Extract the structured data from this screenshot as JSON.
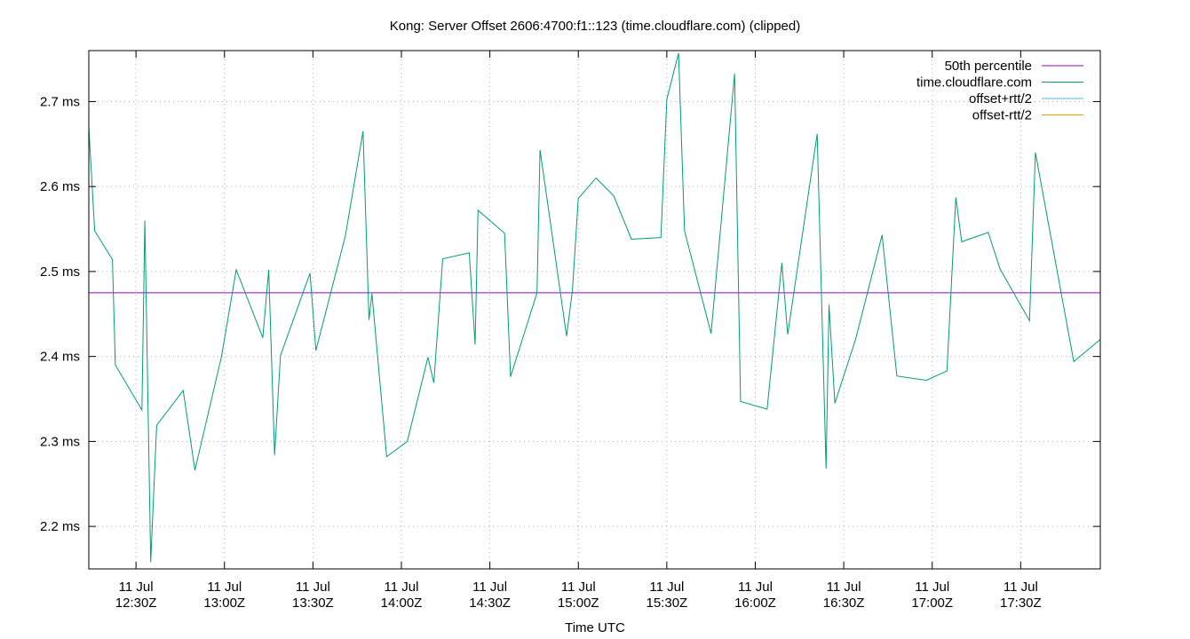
{
  "chart_data": {
    "type": "line",
    "title": "Kong: Server Offset 2606:4700:f1::123 (time.cloudflare.com) (clipped)",
    "xlabel": "Time UTC",
    "ylabel": "",
    "x_range": [
      "12:14Z",
      "17:57Z"
    ],
    "ylim": [
      2.15,
      2.76
    ],
    "y_unit": "ms",
    "y_ticks": [
      2.2,
      2.3,
      2.4,
      2.5,
      2.6,
      2.7
    ],
    "y_tick_labels": [
      "2.2 ms",
      "2.3 ms",
      "2.4 ms",
      "2.5 ms",
      "2.6 ms",
      "2.7 ms"
    ],
    "x_ticks": [
      "12:30Z",
      "13:00Z",
      "13:30Z",
      "14:00Z",
      "14:30Z",
      "15:00Z",
      "15:30Z",
      "16:00Z",
      "16:30Z",
      "17:00Z",
      "17:30Z"
    ],
    "x_tick_labels": [
      {
        "date": "11 Jul",
        "time": "12:30Z"
      },
      {
        "date": "11 Jul",
        "time": "13:00Z"
      },
      {
        "date": "11 Jul",
        "time": "13:30Z"
      },
      {
        "date": "11 Jul",
        "time": "14:00Z"
      },
      {
        "date": "11 Jul",
        "time": "14:30Z"
      },
      {
        "date": "11 Jul",
        "time": "15:00Z"
      },
      {
        "date": "11 Jul",
        "time": "15:30Z"
      },
      {
        "date": "11 Jul",
        "time": "16:00Z"
      },
      {
        "date": "11 Jul",
        "time": "16:30Z"
      },
      {
        "date": "11 Jul",
        "time": "17:00Z"
      },
      {
        "date": "11 Jul",
        "time": "17:30Z"
      }
    ],
    "grid": true,
    "legend_position": "top-right",
    "series": [
      {
        "name": "50th percentile",
        "color": "#9400d3",
        "kind": "constant",
        "value": 2.475
      },
      {
        "name": "time.cloudflare.com",
        "color": "#009e73",
        "x": [
          "12:14Z",
          "12:16Z",
          "12:22Z",
          "12:23Z",
          "12:32Z",
          "12:33Z",
          "12:35Z",
          "12:37Z",
          "12:46Z",
          "12:50Z",
          "12:59Z",
          "13:04Z",
          "13:13Z",
          "13:15Z",
          "13:17Z",
          "13:19Z",
          "13:29Z",
          "13:31Z",
          "13:41Z",
          "13:47Z",
          "13:49Z",
          "13:50Z",
          "13:55Z",
          "14:02Z",
          "14:09Z",
          "14:11Z",
          "14:14Z",
          "14:23Z",
          "14:25Z",
          "14:26Z",
          "14:35Z",
          "14:37Z",
          "14:46Z",
          "14:47Z",
          "14:56Z",
          "14:58Z",
          "15:00Z",
          "15:06Z",
          "15:12Z",
          "15:18Z",
          "15:28Z",
          "15:30Z",
          "15:34Z",
          "15:36Z",
          "15:45Z",
          "15:53Z",
          "15:55Z",
          "16:04Z",
          "16:09Z",
          "16:11Z",
          "16:21Z",
          "16:24Z",
          "16:25Z",
          "16:27Z",
          "16:34Z",
          "16:43Z",
          "16:48Z",
          "16:58Z",
          "17:05Z",
          "17:08Z",
          "17:10Z",
          "17:19Z",
          "17:23Z",
          "17:33Z",
          "17:35Z",
          "17:48Z",
          "17:57Z"
        ],
        "y": [
          2.67,
          2.548,
          2.514,
          2.39,
          2.337,
          2.56,
          2.158,
          2.319,
          2.36,
          2.266,
          2.4,
          2.502,
          2.422,
          2.502,
          2.284,
          2.401,
          2.498,
          2.407,
          2.542,
          2.665,
          2.443,
          2.474,
          2.282,
          2.3,
          2.399,
          2.369,
          2.515,
          2.522,
          2.414,
          2.572,
          2.545,
          2.376,
          2.475,
          2.643,
          2.424,
          2.478,
          2.586,
          2.61,
          2.589,
          2.538,
          2.54,
          2.703,
          2.757,
          2.548,
          2.427,
          2.733,
          2.347,
          2.338,
          2.51,
          2.426,
          2.662,
          2.268,
          2.461,
          2.345,
          2.42,
          2.543,
          2.377,
          2.372,
          2.383,
          2.587,
          2.535,
          2.546,
          2.503,
          2.442,
          2.64,
          2.394,
          2.42
        ]
      },
      {
        "name": "offset+rtt/2",
        "color": "#56b4e9",
        "kind": "clipped"
      },
      {
        "name": "offset-rtt/2",
        "color": "#e69f00",
        "kind": "clipped"
      }
    ]
  }
}
